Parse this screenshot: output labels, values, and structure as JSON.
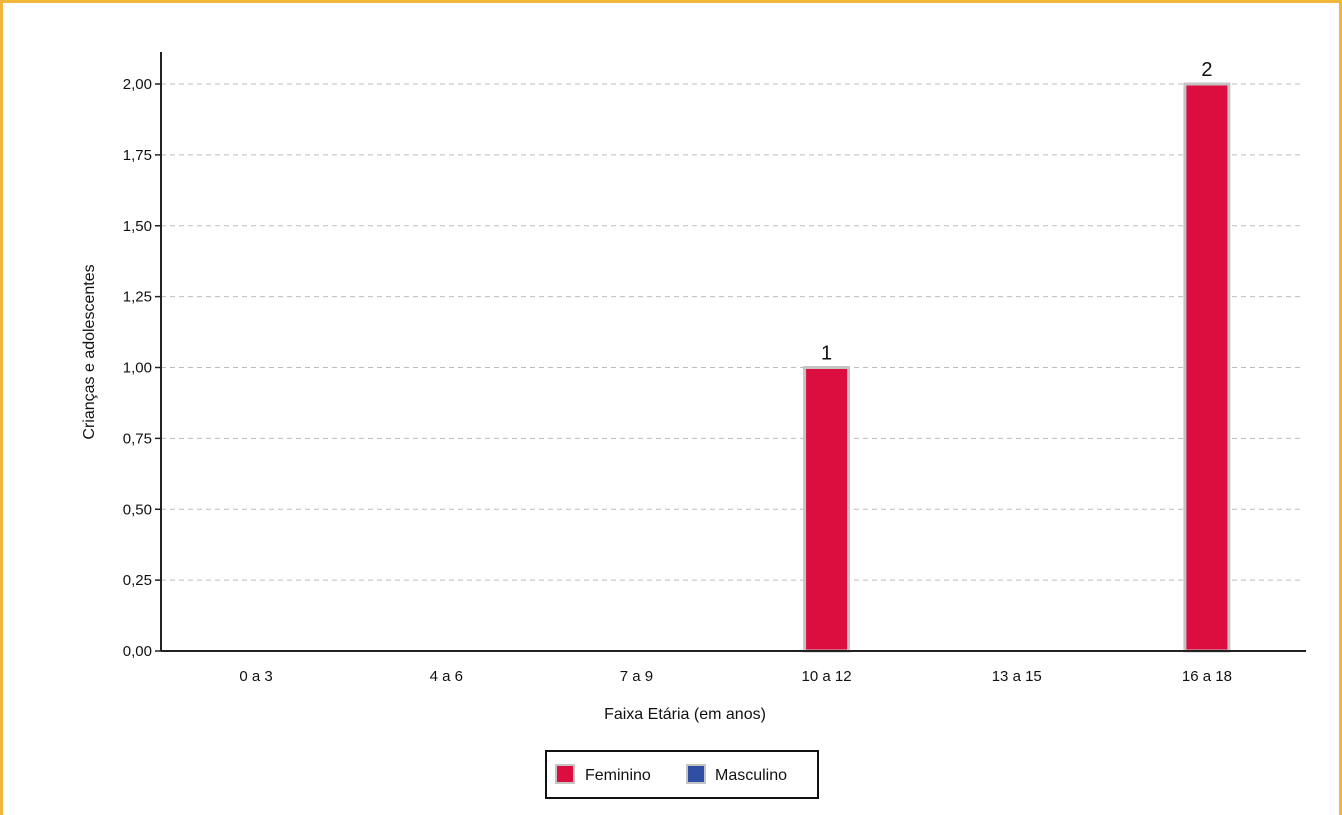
{
  "colors": {
    "frame": "#f2b53c",
    "grid": "#bdbdbd",
    "axis": "#222222",
    "bar_outline": "#c4c4c4"
  },
  "chart_data": {
    "type": "bar",
    "categories": [
      "0 a 3",
      "4 a 6",
      "7 a 9",
      "10 a 12",
      "13 a 15",
      "16 a 18"
    ],
    "series": [
      {
        "name": "Feminino",
        "color": "#dc0e3f",
        "values": [
          0,
          0,
          0,
          1,
          0,
          2
        ]
      },
      {
        "name": "Masculino",
        "color": "#2f4ea3",
        "values": [
          0,
          0,
          0,
          0,
          0,
          0
        ]
      }
    ],
    "data_labels": [
      "",
      "",
      "",
      "1",
      "",
      "2"
    ],
    "title": "",
    "xlabel": "Faixa Etária (em anos)",
    "ylabel": "Crianças e adolescentes",
    "ylim": [
      0,
      2
    ],
    "yticks": [
      "0,00",
      "0,25",
      "0,50",
      "0,75",
      "1,00",
      "1,25",
      "1,50",
      "1,75",
      "2,00"
    ],
    "grid": true,
    "legend": "bottom-center"
  }
}
